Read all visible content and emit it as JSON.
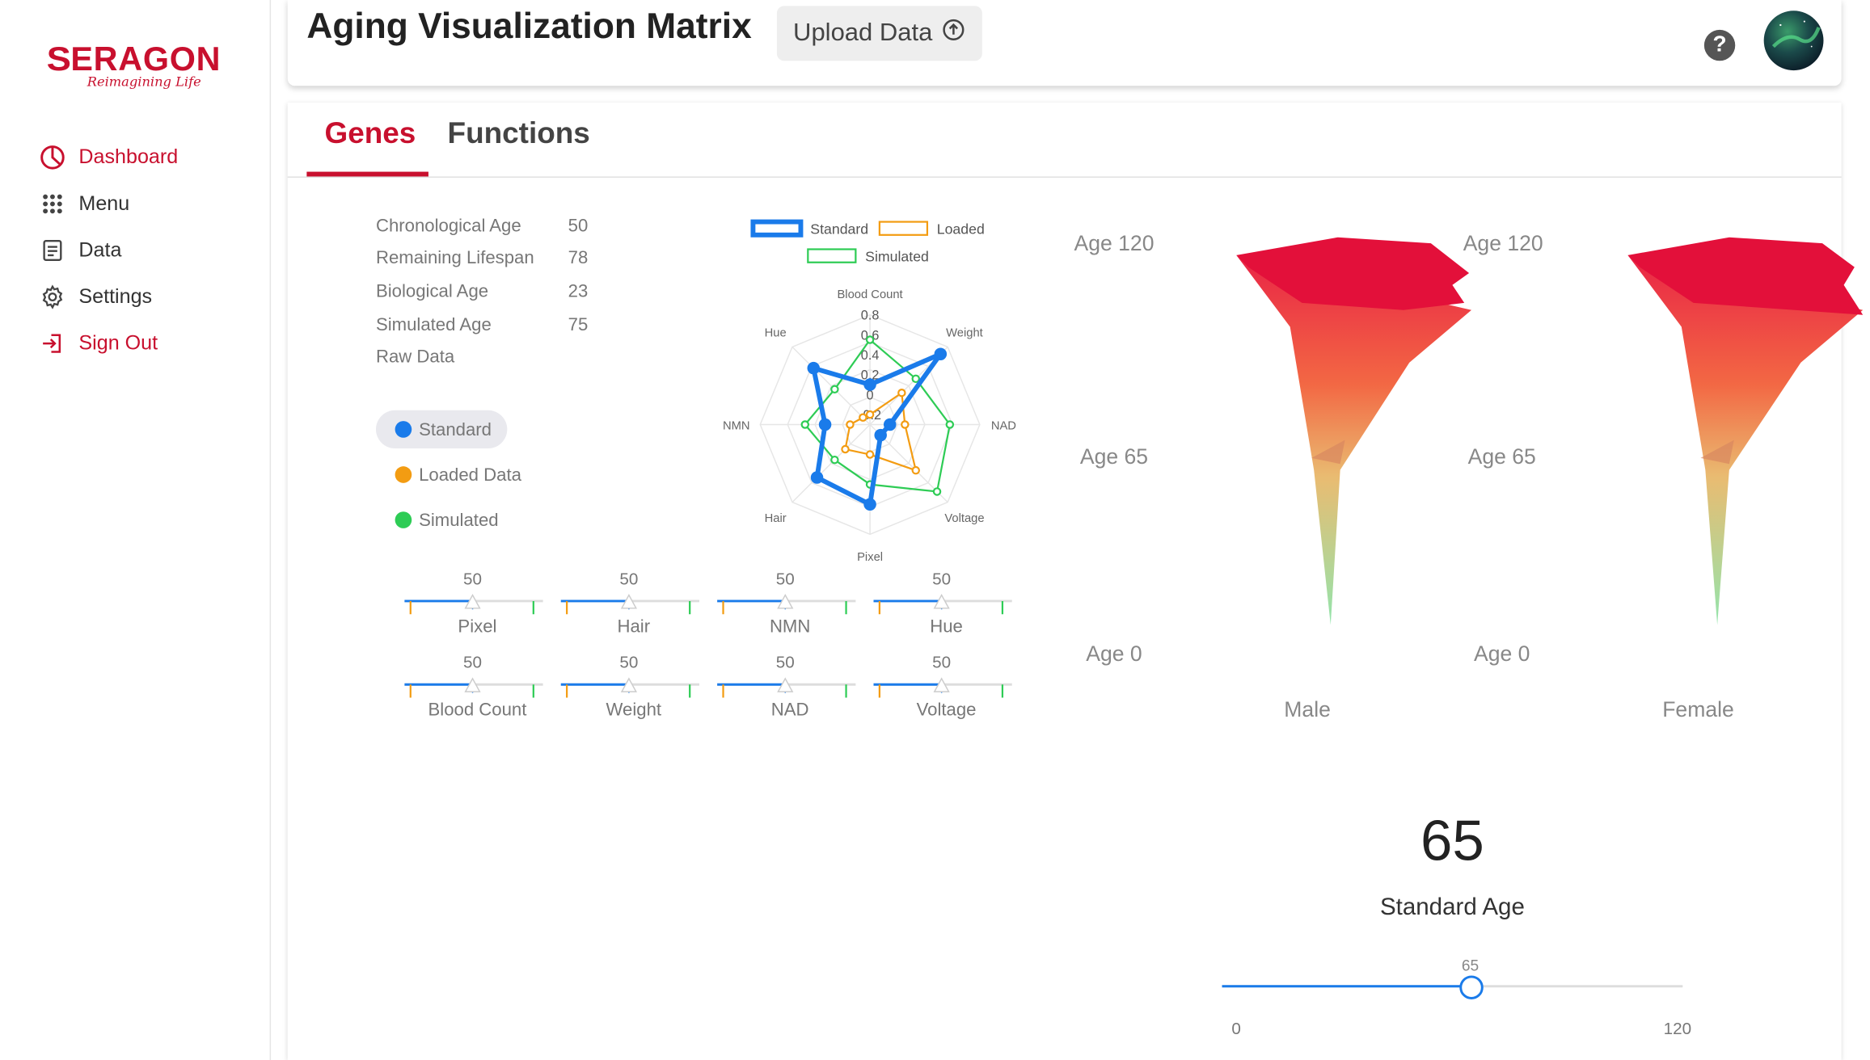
{
  "brand": {
    "logo_text": "ERAGON",
    "logo_letter": "S",
    "tagline": "Reimagining Life"
  },
  "sidebar": {
    "items": [
      {
        "label": "Dashboard",
        "icon": "pie-chart-icon"
      },
      {
        "label": "Menu",
        "icon": "grid-dots-icon"
      },
      {
        "label": "Data",
        "icon": "document-icon"
      },
      {
        "label": "Settings",
        "icon": "gear-icon"
      },
      {
        "label": "Sign Out",
        "icon": "sign-out-icon"
      }
    ]
  },
  "header": {
    "title": "Aging Visualization Matrix",
    "upload_label": "Upload Data",
    "help": "?"
  },
  "tabs": [
    {
      "label": "Genes"
    },
    {
      "label": "Functions"
    }
  ],
  "stats": [
    {
      "label": "Chronological Age",
      "value": "50"
    },
    {
      "label": "Remaining Lifespan",
      "value": "78"
    },
    {
      "label": "Biological Age",
      "value": "23"
    },
    {
      "label": "Simulated Age",
      "value": "75"
    },
    {
      "label": "Raw Data",
      "value": ""
    }
  ],
  "legend": [
    {
      "label": "Standard",
      "color": "#1a7bea"
    },
    {
      "label": "Loaded Data",
      "color": "#f39c12"
    },
    {
      "label": "Simulated",
      "color": "#2ecc55"
    }
  ],
  "sliders": [
    {
      "name": "Pixel",
      "value": "50"
    },
    {
      "name": "Hair",
      "value": "50"
    },
    {
      "name": "NMN",
      "value": "50"
    },
    {
      "name": "Hue",
      "value": "50"
    },
    {
      "name": "Blood Count",
      "value": "50"
    },
    {
      "name": "Weight",
      "value": "50"
    },
    {
      "name": "NAD",
      "value": "50"
    },
    {
      "name": "Voltage",
      "value": "50"
    }
  ],
  "chart_data": {
    "type": "radar",
    "axes": [
      "Blood Count",
      "Weight",
      "NAD",
      "Voltage",
      "Pixel",
      "Hair",
      "NMN",
      "Hue"
    ],
    "rticks": [
      "0.8",
      "0.6",
      "0.4",
      "0.2",
      "0",
      "-0.2"
    ],
    "rlim": [
      -0.3,
      0.8
    ],
    "legend_position": "top",
    "series": [
      {
        "name": "Standard",
        "color": "#1a7bea",
        "values": [
          0.1,
          0.7,
          -0.1,
          -0.15,
          0.5,
          0.45,
          0.15,
          0.5
        ]
      },
      {
        "name": "Loaded",
        "color": "#f39c12",
        "values": [
          -0.2,
          0.15,
          0.05,
          0.35,
          0.0,
          0.05,
          -0.1,
          -0.2
        ]
      },
      {
        "name": "Simulated",
        "color": "#2ecc55",
        "values": [
          0.55,
          0.35,
          0.5,
          0.65,
          0.3,
          0.2,
          0.35,
          0.2
        ]
      }
    ]
  },
  "age_scale": {
    "top": "Age 120",
    "mid": "Age 65",
    "bottom": "Age 0"
  },
  "figures": {
    "male": "Male",
    "female": "Female"
  },
  "standard_age": {
    "value": "65",
    "label": "Standard Age",
    "min": "0",
    "max": "120",
    "current": "65"
  }
}
